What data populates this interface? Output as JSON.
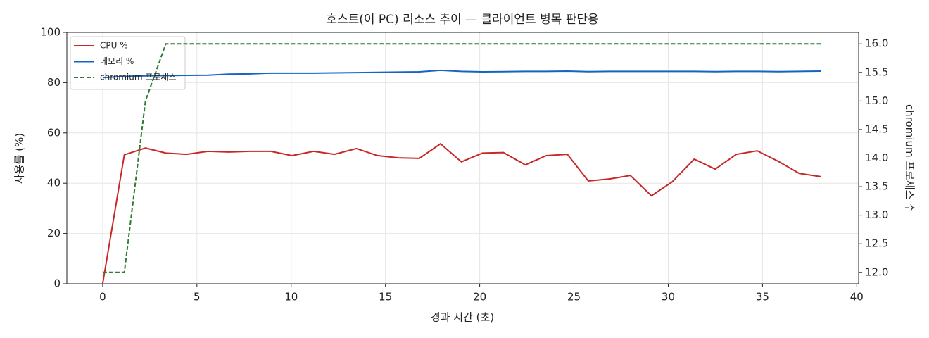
{
  "chart_data": {
    "type": "line",
    "title": "호스트(이 PC) 리소스 추이 — 클라이언트 병목 판단용",
    "xlabel": "경과 시간 (초)",
    "ylabel": "사용률 (%)",
    "y2label": "chromium 프로세스 수",
    "x": [
      0,
      1.15,
      2.27,
      3.35,
      4.46,
      5.58,
      6.69,
      7.81,
      8.92,
      10.04,
      11.19,
      12.3,
      13.46,
      14.57,
      15.69,
      16.8,
      17.92,
      19.03,
      20.15,
      21.26,
      22.42,
      23.53,
      24.65,
      25.76,
      26.88,
      27.99,
      29.11,
      30.22,
      31.38,
      32.49,
      33.61,
      34.72,
      35.84,
      36.95,
      38.1
    ],
    "series": [
      {
        "name": "CPU %",
        "color": "#c62828",
        "values": [
          0,
          51.3,
          54,
          52,
          51.5,
          52.7,
          52.4,
          52.7,
          52.7,
          51,
          52.7,
          51.5,
          53.8,
          51,
          50.1,
          49.9,
          55.7,
          48.5,
          52,
          52.2,
          47.3,
          51,
          51.5,
          40.9,
          41.7,
          43.1,
          35,
          40.6,
          49.6,
          45.6,
          51.5,
          52.9,
          48.7,
          43.9,
          42.6
        ]
      },
      {
        "name": "메모리 %",
        "color": "#1565c0",
        "values": [
          82,
          82.5,
          82.7,
          82.8,
          82.9,
          83,
          83.4,
          83.5,
          83.8,
          83.8,
          83.8,
          83.9,
          84,
          84.1,
          84.2,
          84.3,
          84.9,
          84.5,
          84.3,
          84.4,
          84.5,
          84.5,
          84.6,
          84.4,
          84.5,
          84.5,
          84.5,
          84.5,
          84.5,
          84.4,
          84.5,
          84.5,
          84.4,
          84.5,
          84.6
        ]
      },
      {
        "name": "chromium 프로세스",
        "color": "#2e7d32",
        "linestyle": "dashed",
        "axis": "y2",
        "values": [
          12,
          12,
          15,
          16,
          16,
          16,
          16,
          16,
          16,
          16,
          16,
          16,
          16,
          16,
          16,
          16,
          16,
          16,
          16,
          16,
          16,
          16,
          16,
          16,
          16,
          16,
          16,
          16,
          16,
          16,
          16,
          16,
          16,
          16,
          16
        ]
      }
    ],
    "xlim": [
      -1.9,
      40.1
    ],
    "xticks": [
      0,
      5,
      10,
      15,
      20,
      25,
      30,
      35,
      40
    ],
    "ylim": [
      0,
      100
    ],
    "yticks": [
      0,
      20,
      40,
      60,
      80,
      100
    ],
    "y2lim": [
      11.8,
      16.2
    ],
    "y2ticks": [
      {
        "value": 12,
        "label": "12.0"
      },
      {
        "value": 12.5,
        "label": "12.5"
      },
      {
        "value": 13,
        "label": "13.0"
      },
      {
        "value": 13.5,
        "label": "13.5"
      },
      {
        "value": 14,
        "label": "14.0"
      },
      {
        "value": 14.5,
        "label": "14.5"
      },
      {
        "value": 15,
        "label": "15.0"
      },
      {
        "value": 15.5,
        "label": "15.5"
      },
      {
        "value": 16,
        "label": "16.0"
      }
    ],
    "grid": true,
    "legend": "upper left"
  }
}
